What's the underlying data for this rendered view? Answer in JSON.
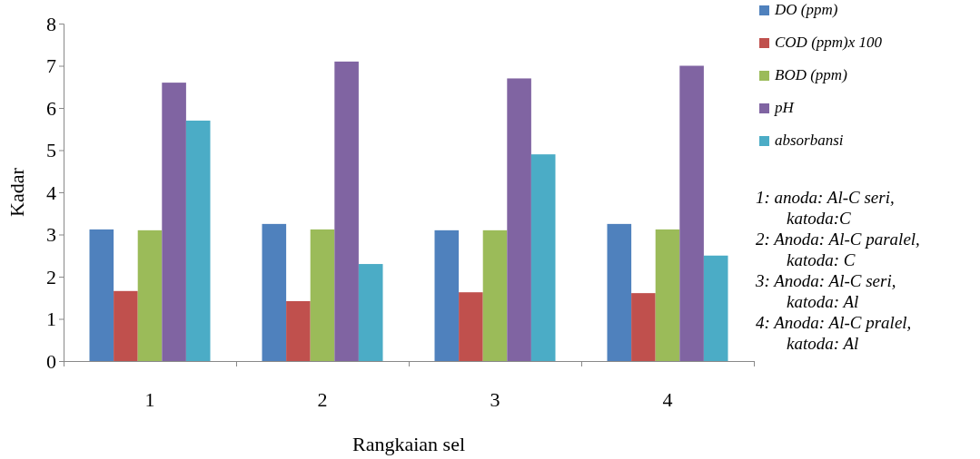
{
  "chart_data": {
    "type": "bar",
    "xlabel": "Rangkaian sel",
    "ylabel": "Kadar",
    "categories": [
      "1",
      "2",
      "3",
      "4"
    ],
    "series": [
      {
        "name": "DO (ppm)",
        "color": "#4f81bd",
        "values": [
          3.12,
          3.25,
          3.1,
          3.25
        ]
      },
      {
        "name": "COD (ppm)x 100",
        "color": "#c0504d",
        "values": [
          1.66,
          1.42,
          1.63,
          1.61
        ]
      },
      {
        "name": "BOD (ppm)",
        "color": "#9bbb59",
        "values": [
          3.1,
          3.12,
          3.1,
          3.12
        ]
      },
      {
        "name": "pH",
        "color": "#8064a2",
        "values": [
          6.6,
          7.1,
          6.7,
          7.0
        ]
      },
      {
        "name": "absorbansi",
        "color": "#4bacc6",
        "values": [
          5.7,
          2.3,
          4.9,
          2.5
        ]
      }
    ],
    "ylim": [
      0,
      8
    ],
    "yticks": [
      0,
      1,
      2,
      3,
      4,
      5,
      6,
      7,
      8
    ],
    "grid": false,
    "legend": "top right",
    "annotations": [
      "1: anoda: Al-C seri,\nkatoda:C",
      "2: Anoda: Al-C paralel,\nkatoda: C",
      "3: Anoda: Al-C seri,\nkatoda: Al",
      "4: Anoda: Al-C pralel,\nkatoda: Al"
    ]
  }
}
